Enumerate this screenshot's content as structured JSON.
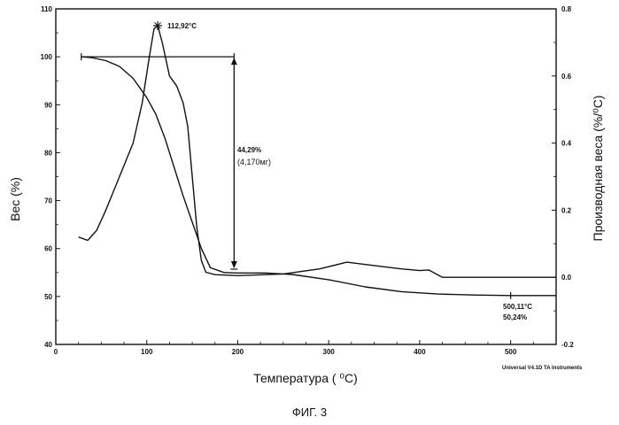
{
  "chart_data": {
    "type": "line",
    "xlabel": "Температура ( ⁰C)",
    "ylabel_left": "Вес  (%)",
    "ylabel_right": "Производная веса (%/⁰C)",
    "xlim": [
      0,
      550
    ],
    "ylim_left": [
      40,
      110
    ],
    "ylim_right": [
      -0.2,
      0.8
    ],
    "x_ticks": [
      0,
      100,
      200,
      300,
      400,
      500
    ],
    "y_ticks_left": [
      40,
      50,
      60,
      70,
      80,
      90,
      100,
      110
    ],
    "y_ticks_right": [
      -0.2,
      0.0,
      0.2,
      0.4,
      0.6,
      0.8
    ],
    "x_tick_labels": [
      "0",
      "100",
      "200",
      "300",
      "400",
      "500"
    ],
    "y_tick_labels_left": [
      "40",
      "50",
      "60",
      "70",
      "80",
      "90",
      "100",
      "110"
    ],
    "y_tick_labels_right": [
      "-0.2",
      "0.0",
      "0.2",
      "0.4",
      "0.6",
      "0.8"
    ],
    "grid": false,
    "series": [
      {
        "axis": "left",
        "x": [
          28,
          40,
          55,
          70,
          85,
          100,
          110,
          120,
          130,
          140,
          150,
          160,
          170,
          185,
          200,
          230,
          260,
          300,
          340,
          380,
          420,
          460,
          500,
          550
        ],
        "y": [
          100,
          99.8,
          99.2,
          98,
          95.5,
          91.5,
          88,
          83,
          77,
          71,
          65.5,
          60,
          56,
          55,
          54.9,
          54.9,
          54.6,
          53.5,
          52,
          51,
          50.5,
          50.3,
          50.2,
          50.2
        ]
      },
      {
        "axis": "right",
        "x": [
          25,
          35,
          45,
          55,
          70,
          85,
          95,
          103,
          108,
          112,
          117,
          125,
          133,
          140,
          145,
          150,
          155,
          160,
          165,
          175,
          200,
          250,
          290,
          320,
          350,
          380,
          400,
          410,
          418,
          425,
          450,
          500,
          550
        ],
        "y": [
          0.12,
          0.11,
          0.14,
          0.2,
          0.3,
          0.4,
          0.52,
          0.66,
          0.74,
          0.75,
          0.7,
          0.6,
          0.57,
          0.52,
          0.45,
          0.3,
          0.15,
          0.05,
          0.015,
          0.008,
          0.005,
          0.01,
          0.025,
          0.045,
          0.035,
          0.025,
          0.02,
          0.022,
          0.01,
          0.0,
          0.0,
          0.0,
          0.0
        ]
      }
    ],
    "annotations": {
      "peak_label": "112,92°C",
      "peak": {
        "x": 112,
        "y_right": 0.75
      },
      "step_start": {
        "x": 28,
        "y": 100
      },
      "step_end": {
        "x": 196,
        "y": 55.7
      },
      "loss_percent": "44,29%",
      "loss_mass": "(4,170мг)",
      "end_temp": "500,11°C",
      "end_percent": "50,24%",
      "end_marker": {
        "x": 500,
        "y": 50.2
      }
    },
    "credit": "Universal V4.1D TA Instruments"
  },
  "caption": "ФИГ. 3"
}
